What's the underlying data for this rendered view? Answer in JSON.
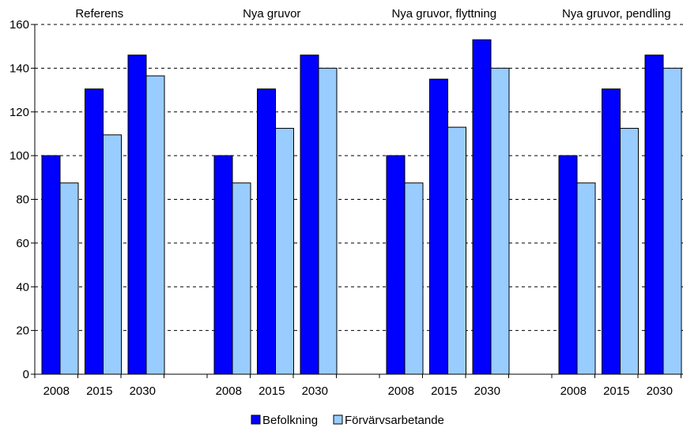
{
  "chart_data": {
    "type": "bar",
    "groups": [
      {
        "title": "Referens",
        "categories": [
          "2008",
          "2015",
          "2030"
        ]
      },
      {
        "title": "Nya gruvor",
        "categories": [
          "2008",
          "2015",
          "2030"
        ]
      },
      {
        "title": "Nya gruvor, flyttning",
        "categories": [
          "2008",
          "2015",
          "2030"
        ]
      },
      {
        "title": "Nya gruvor, pendling",
        "categories": [
          "2008",
          "2015",
          "2030"
        ]
      }
    ],
    "series": [
      {
        "name": "Befolkning",
        "color": "#0000ff",
        "values": [
          100,
          130.5,
          146,
          100,
          130.5,
          146,
          100,
          135,
          153,
          100,
          130.5,
          146
        ]
      },
      {
        "name": "Förvärvsarbetande",
        "color": "#99ccff",
        "values": [
          87.5,
          109.5,
          136.5,
          87.5,
          112.5,
          140,
          87.5,
          113,
          140,
          87.5,
          112.5,
          140
        ]
      }
    ],
    "ylim": [
      0,
      160
    ],
    "yticks": [
      0,
      20,
      40,
      60,
      80,
      100,
      120,
      140,
      160
    ],
    "grid": true,
    "legend": "bottom"
  }
}
